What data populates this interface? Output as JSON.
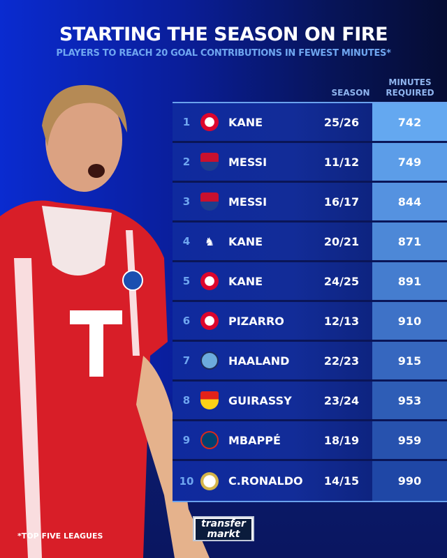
{
  "title": "STARTING THE SEASON ON FIRE",
  "subtitle": "PLAYERS TO REACH 20 GOAL CONTRIBUTIONS IN FEWEST MINUTES*",
  "headers": {
    "season": "SEASON",
    "minutes_1": "MINUTES",
    "minutes_2": "REQUIRED"
  },
  "rows": [
    {
      "rank": "1",
      "club_icon": "bayern-crest",
      "player": "KANE",
      "season": "25/26",
      "minutes": "742"
    },
    {
      "rank": "2",
      "club_icon": "barcelona-crest",
      "player": "MESSI",
      "season": "11/12",
      "minutes": "749"
    },
    {
      "rank": "3",
      "club_icon": "barcelona-crest",
      "player": "MESSI",
      "season": "16/17",
      "minutes": "844"
    },
    {
      "rank": "4",
      "club_icon": "tottenham-crest",
      "player": "KANE",
      "season": "20/21",
      "minutes": "871"
    },
    {
      "rank": "5",
      "club_icon": "bayern-crest",
      "player": "KANE",
      "season": "24/25",
      "minutes": "891"
    },
    {
      "rank": "6",
      "club_icon": "bayern-crest",
      "player": "PIZARRO",
      "season": "12/13",
      "minutes": "910"
    },
    {
      "rank": "7",
      "club_icon": "man-city-crest",
      "player": "HAALAND",
      "season": "22/23",
      "minutes": "915"
    },
    {
      "rank": "8",
      "club_icon": "stuttgart-crest",
      "player": "GUIRASSY",
      "season": "23/24",
      "minutes": "953"
    },
    {
      "rank": "9",
      "club_icon": "psg-crest",
      "player": "MBAPPÉ",
      "season": "18/19",
      "minutes": "959"
    },
    {
      "rank": "10",
      "club_icon": "real-madrid-crest",
      "player": "C.RONALDO",
      "season": "14/15",
      "minutes": "990"
    }
  ],
  "footnote": "*TOP FIVE LEAGUES",
  "logo": {
    "line1": "transfer",
    "line2": "markt"
  },
  "colors": {
    "accent": "#6fa6f0",
    "minutes_top": "#64a8f0",
    "minutes_bottom": "#1f47a6",
    "shirt": "#e0202a"
  }
}
